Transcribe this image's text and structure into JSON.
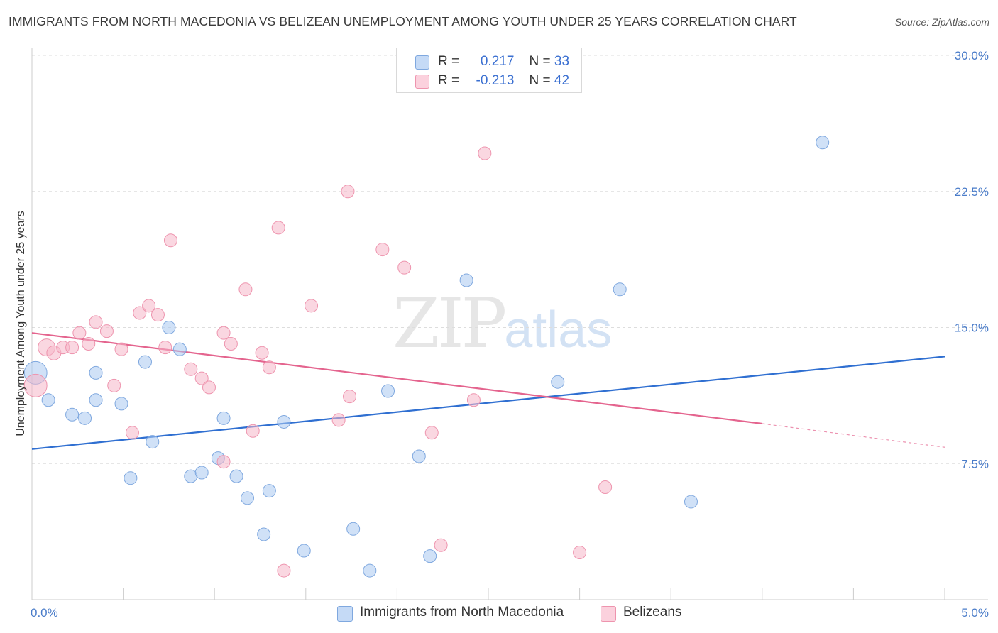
{
  "title": "IMMIGRANTS FROM NORTH MACEDONIA VS BELIZEAN UNEMPLOYMENT AMONG YOUTH UNDER 25 YEARS CORRELATION CHART",
  "source": "Source: ZipAtlas.com",
  "watermark": {
    "zip": "ZIP",
    "atlas": "atlas"
  },
  "legend": {
    "r_label": "R =",
    "n_label": "N =",
    "rows": [
      {
        "r": "0.217",
        "n": "33",
        "color": "#aac8f0"
      },
      {
        "r": "-0.213",
        "n": "42",
        "color": "#f6b7c8"
      }
    ]
  },
  "chart_data": {
    "type": "scatter",
    "title": "IMMIGRANTS FROM NORTH MACEDONIA VS BELIZEAN UNEMPLOYMENT AMONG YOUTH UNDER 25 YEARS CORRELATION CHART",
    "xlabel": "",
    "ylabel": "Unemployment Among Youth under 25 years",
    "xlim": [
      0,
      5
    ],
    "ylim": [
      0,
      30
    ],
    "x_tick_labels": [
      "0.0%",
      "5.0%"
    ],
    "y_ticks": [
      7.5,
      15.0,
      22.5,
      30.0
    ],
    "y_tick_labels": [
      "7.5%",
      "15.0%",
      "22.5%",
      "30.0%"
    ],
    "grid": "horizontal dashed",
    "legend_position": "top-center",
    "series": [
      {
        "name": "Immigrants from North Macedonia",
        "color": "#aac8f0",
        "stroke": "#7fa8df",
        "trend_color": "#2f6fd1",
        "trend": {
          "x": [
            0,
            5
          ],
          "y": [
            8.3,
            13.4
          ]
        },
        "points": [
          [
            0.02,
            12.5,
            16
          ],
          [
            0.09,
            11.0,
            9
          ],
          [
            0.22,
            10.2,
            9
          ],
          [
            0.29,
            10.0,
            9
          ],
          [
            0.35,
            12.5,
            9
          ],
          [
            0.35,
            11.0,
            9
          ],
          [
            0.49,
            10.8,
            9
          ],
          [
            0.62,
            13.1,
            9
          ],
          [
            0.54,
            6.7,
            9
          ],
          [
            0.66,
            8.7,
            9
          ],
          [
            0.75,
            15.0,
            9
          ],
          [
            0.81,
            13.8,
            9
          ],
          [
            0.87,
            6.8,
            9
          ],
          [
            0.93,
            7.0,
            9
          ],
          [
            1.02,
            7.8,
            9
          ],
          [
            1.05,
            10.0,
            9
          ],
          [
            1.12,
            6.8,
            9
          ],
          [
            1.18,
            5.6,
            9
          ],
          [
            1.27,
            3.6,
            9
          ],
          [
            1.3,
            6.0,
            9
          ],
          [
            1.38,
            9.8,
            9
          ],
          [
            1.49,
            2.7,
            9
          ],
          [
            1.76,
            3.9,
            9
          ],
          [
            1.85,
            1.6,
            9
          ],
          [
            1.95,
            11.5,
            9
          ],
          [
            2.12,
            7.9,
            9
          ],
          [
            2.18,
            2.4,
            9
          ],
          [
            2.38,
            17.6,
            9
          ],
          [
            2.88,
            12.0,
            9
          ],
          [
            3.22,
            17.1,
            9
          ],
          [
            3.61,
            5.4,
            9
          ],
          [
            4.33,
            25.2,
            9
          ]
        ]
      },
      {
        "name": "Belizeans",
        "color": "#f6b7c8",
        "stroke": "#ee94ae",
        "trend_color": "#e4648e",
        "trend": {
          "x": [
            0,
            4.0
          ],
          "y": [
            14.7,
            9.7
          ]
        },
        "trend_dashed": {
          "x": [
            4.0,
            5
          ],
          "y": [
            9.7,
            8.4
          ]
        },
        "points": [
          [
            0.02,
            11.8,
            16
          ],
          [
            0.08,
            13.9,
            12
          ],
          [
            0.12,
            13.6,
            10
          ],
          [
            0.17,
            13.9,
            9
          ],
          [
            0.22,
            13.9,
            9
          ],
          [
            0.26,
            14.7,
            9
          ],
          [
            0.31,
            14.1,
            9
          ],
          [
            0.35,
            15.3,
            9
          ],
          [
            0.41,
            14.8,
            9
          ],
          [
            0.45,
            11.8,
            9
          ],
          [
            0.49,
            13.8,
            9
          ],
          [
            0.55,
            9.2,
            9
          ],
          [
            0.59,
            15.8,
            9
          ],
          [
            0.64,
            16.2,
            9
          ],
          [
            0.69,
            15.7,
            9
          ],
          [
            0.73,
            13.9,
            9
          ],
          [
            0.76,
            19.8,
            9
          ],
          [
            0.87,
            12.7,
            9
          ],
          [
            0.93,
            12.2,
            9
          ],
          [
            0.97,
            11.7,
            9
          ],
          [
            1.05,
            7.6,
            9
          ],
          [
            1.05,
            14.7,
            9
          ],
          [
            1.09,
            14.1,
            9
          ],
          [
            1.17,
            17.1,
            9
          ],
          [
            1.21,
            9.3,
            9
          ],
          [
            1.26,
            13.6,
            9
          ],
          [
            1.3,
            12.8,
            9
          ],
          [
            1.35,
            20.5,
            9
          ],
          [
            1.38,
            1.6,
            9
          ],
          [
            1.53,
            16.2,
            9
          ],
          [
            1.68,
            9.9,
            9
          ],
          [
            1.73,
            22.5,
            9
          ],
          [
            1.74,
            11.2,
            9
          ],
          [
            1.92,
            19.3,
            9
          ],
          [
            2.04,
            18.3,
            9
          ],
          [
            2.19,
            9.2,
            9
          ],
          [
            2.24,
            3.0,
            9
          ],
          [
            2.42,
            11.0,
            9
          ],
          [
            2.48,
            24.6,
            9
          ],
          [
            3.0,
            2.6,
            9
          ],
          [
            3.14,
            6.2,
            9
          ]
        ]
      }
    ]
  }
}
